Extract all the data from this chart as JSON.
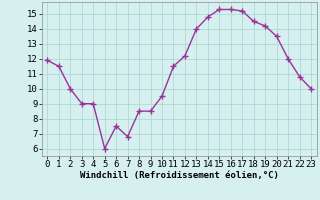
{
  "x": [
    0,
    1,
    2,
    3,
    4,
    5,
    6,
    7,
    8,
    9,
    10,
    11,
    12,
    13,
    14,
    15,
    16,
    17,
    18,
    19,
    20,
    21,
    22,
    23
  ],
  "y": [
    11.9,
    11.5,
    10.0,
    9.0,
    9.0,
    6.0,
    7.5,
    6.8,
    8.5,
    8.5,
    9.5,
    11.5,
    12.2,
    14.0,
    14.8,
    15.3,
    15.3,
    15.2,
    14.5,
    14.2,
    13.5,
    12.0,
    10.8,
    10.0
  ],
  "line_color": "#993399",
  "marker_color": "#993399",
  "bg_color": "#d6f0f0",
  "grid_color": "#b0d8d8",
  "xlabel": "Windchill (Refroidissement éolien,°C)",
  "xlim": [
    -0.5,
    23.5
  ],
  "ylim": [
    5.5,
    15.8
  ],
  "yticks": [
    6,
    7,
    8,
    9,
    10,
    11,
    12,
    13,
    14,
    15
  ],
  "xticks": [
    0,
    1,
    2,
    3,
    4,
    5,
    6,
    7,
    8,
    9,
    10,
    11,
    12,
    13,
    14,
    15,
    16,
    17,
    18,
    19,
    20,
    21,
    22,
    23
  ],
  "xlabel_fontsize": 6.5,
  "tick_fontsize": 6.5,
  "line_width": 1.0,
  "marker_size": 2.5
}
